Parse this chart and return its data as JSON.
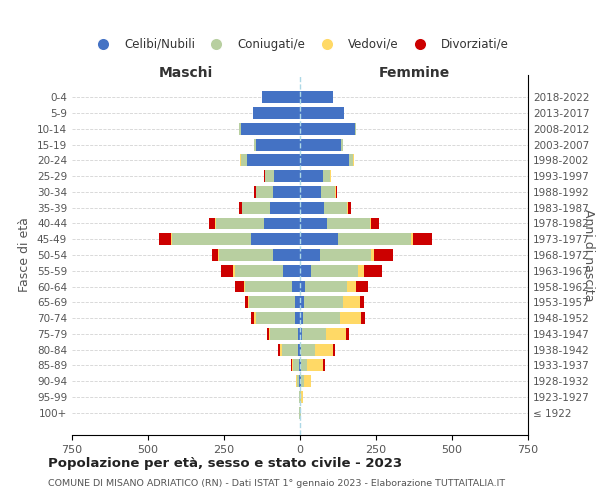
{
  "age_groups": [
    "100+",
    "95-99",
    "90-94",
    "85-89",
    "80-84",
    "75-79",
    "70-74",
    "65-69",
    "60-64",
    "55-59",
    "50-54",
    "45-49",
    "40-44",
    "35-39",
    "30-34",
    "25-29",
    "20-24",
    "15-19",
    "10-14",
    "5-9",
    "0-4"
  ],
  "birth_years": [
    "≤ 1922",
    "1923-1927",
    "1928-1932",
    "1933-1937",
    "1938-1942",
    "1943-1947",
    "1948-1952",
    "1953-1957",
    "1958-1962",
    "1963-1967",
    "1968-1972",
    "1973-1977",
    "1978-1982",
    "1983-1987",
    "1988-1992",
    "1993-1997",
    "1998-2002",
    "2003-2007",
    "2008-2012",
    "2013-2017",
    "2018-2022"
  ],
  "maschi": {
    "celibi": [
      1,
      1,
      2,
      3,
      5,
      8,
      15,
      18,
      25,
      55,
      90,
      160,
      120,
      100,
      90,
      85,
      175,
      145,
      195,
      155,
      125
    ],
    "coniugati": [
      1,
      2,
      8,
      20,
      55,
      90,
      130,
      150,
      155,
      160,
      175,
      260,
      155,
      90,
      55,
      30,
      20,
      5,
      5,
      0,
      0
    ],
    "vedovi": [
      0,
      0,
      2,
      3,
      6,
      4,
      5,
      4,
      3,
      5,
      5,
      5,
      3,
      2,
      1,
      1,
      2,
      0,
      0,
      0,
      0
    ],
    "divorziati": [
      0,
      0,
      0,
      5,
      5,
      5,
      10,
      10,
      30,
      40,
      20,
      40,
      20,
      10,
      5,
      3,
      2,
      0,
      0,
      0,
      0
    ]
  },
  "femmine": {
    "nubili": [
      1,
      1,
      2,
      2,
      4,
      6,
      10,
      12,
      18,
      35,
      65,
      125,
      90,
      80,
      70,
      75,
      160,
      135,
      180,
      145,
      110
    ],
    "coniugate": [
      1,
      3,
      10,
      20,
      45,
      80,
      120,
      130,
      135,
      155,
      170,
      240,
      140,
      75,
      45,
      25,
      15,
      5,
      5,
      0,
      0
    ],
    "vedove": [
      1,
      5,
      25,
      55,
      60,
      65,
      70,
      55,
      30,
      20,
      10,
      8,
      5,
      3,
      2,
      1,
      2,
      0,
      0,
      0,
      0
    ],
    "divorziate": [
      0,
      0,
      0,
      5,
      5,
      10,
      15,
      15,
      40,
      60,
      60,
      60,
      25,
      10,
      5,
      2,
      2,
      0,
      0,
      0,
      0
    ]
  },
  "colors": {
    "celibi_nubili": "#4472c4",
    "coniugati": "#b8cfa0",
    "vedovi": "#ffd966",
    "divorziati": "#cc0000"
  },
  "xlim": 750,
  "title": "Popolazione per età, sesso e stato civile - 2023",
  "subtitle": "COMUNE DI MISANO ADRIATICO (RN) - Dati ISTAT 1° gennaio 2023 - Elaborazione TUTTAITALIA.IT",
  "ylabel_left": "Fasce di età",
  "ylabel_right": "Anni di nascita",
  "xlabel_left": "Maschi",
  "xlabel_right": "Femmine"
}
